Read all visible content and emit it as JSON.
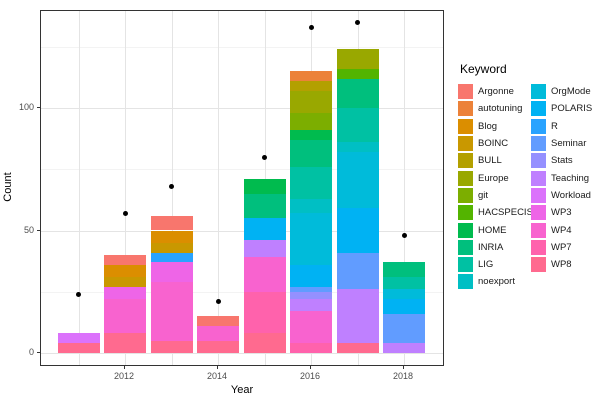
{
  "axes": {
    "x_label": "Year",
    "y_label": "Count",
    "y_ticks": [
      "0",
      "50",
      "100"
    ],
    "x_ticks": [
      "2012",
      "2014",
      "2016",
      "2018"
    ]
  },
  "legend": {
    "title": "Keyword",
    "column_split": 12
  },
  "chart_data": {
    "type": "bar",
    "stacked": true,
    "title": "",
    "xlabel": "Year",
    "ylabel": "Count",
    "ylim": [
      0,
      140
    ],
    "grid": "major 0/50/100, minor 25/75/125",
    "legend_position": "right",
    "legend_title": "Keyword",
    "categories": [
      2011,
      2012,
      2013,
      2014,
      2015,
      2016,
      2017,
      2018
    ],
    "series": [
      {
        "name": "Argonne",
        "color": "#F8766D",
        "values": [
          0,
          4,
          6,
          4,
          0,
          0,
          0,
          0
        ]
      },
      {
        "name": "autotuning",
        "color": "#EC8239",
        "values": [
          0,
          0,
          0,
          0,
          0,
          4,
          0,
          0
        ]
      },
      {
        "name": "Blog",
        "color": "#DB8E00",
        "values": [
          0,
          5,
          5,
          0,
          0,
          0,
          0,
          0
        ]
      },
      {
        "name": "BOINC",
        "color": "#C99800",
        "values": [
          0,
          4,
          4,
          0,
          0,
          0,
          0,
          0
        ]
      },
      {
        "name": "BULL",
        "color": "#B3A000",
        "values": [
          0,
          0,
          0,
          0,
          0,
          4,
          0,
          0
        ]
      },
      {
        "name": "Europe",
        "color": "#99A800",
        "values": [
          0,
          0,
          0,
          0,
          0,
          9,
          8,
          0
        ]
      },
      {
        "name": "git",
        "color": "#7CAE00",
        "values": [
          0,
          0,
          0,
          0,
          0,
          7,
          0,
          0
        ]
      },
      {
        "name": "HACSPECIS",
        "color": "#53B400",
        "values": [
          0,
          0,
          0,
          0,
          0,
          0,
          4,
          0
        ]
      },
      {
        "name": "HOME",
        "color": "#00BB4E",
        "values": [
          0,
          0,
          0,
          0,
          6,
          4,
          0,
          0
        ]
      },
      {
        "name": "INRIA",
        "color": "#00BF7D",
        "values": [
          0,
          0,
          0,
          0,
          10,
          11,
          12,
          6
        ]
      },
      {
        "name": "LIG",
        "color": "#00C1A3",
        "values": [
          0,
          0,
          0,
          0,
          0,
          13,
          14,
          5
        ]
      },
      {
        "name": "noexport",
        "color": "#00BFC4",
        "values": [
          0,
          0,
          0,
          0,
          0,
          6,
          4,
          0
        ]
      },
      {
        "name": "OrgMode",
        "color": "#00BBDA",
        "values": [
          0,
          0,
          0,
          0,
          0,
          21,
          23,
          4
        ]
      },
      {
        "name": "POLARIS",
        "color": "#00B2F3",
        "values": [
          0,
          0,
          0,
          0,
          9,
          9,
          18,
          6
        ]
      },
      {
        "name": "R",
        "color": "#29A3FF",
        "values": [
          0,
          0,
          4,
          0,
          0,
          0,
          0,
          0
        ]
      },
      {
        "name": "Seminar",
        "color": "#619CFF",
        "values": [
          0,
          0,
          0,
          0,
          0,
          2,
          15,
          12
        ]
      },
      {
        "name": "Stats",
        "color": "#9590FF",
        "values": [
          0,
          0,
          0,
          0,
          0,
          3,
          0,
          0
        ]
      },
      {
        "name": "Teaching",
        "color": "#BF80FF",
        "values": [
          0,
          0,
          0,
          0,
          7,
          5,
          22,
          4
        ]
      },
      {
        "name": "Workload",
        "color": "#DB72FB",
        "values": [
          4,
          0,
          0,
          0,
          0,
          0,
          0,
          0
        ]
      },
      {
        "name": "WP3",
        "color": "#EE65E7",
        "values": [
          0,
          5,
          8,
          0,
          0,
          0,
          0,
          0
        ]
      },
      {
        "name": "WP4",
        "color": "#F863CF",
        "values": [
          0,
          14,
          24,
          6,
          14,
          13,
          0,
          0
        ]
      },
      {
        "name": "WP7",
        "color": "#FF62AC",
        "values": [
          0,
          0,
          0,
          0,
          17,
          4,
          0,
          0
        ]
      },
      {
        "name": "WP8",
        "color": "#FF6A8F",
        "values": [
          4,
          8,
          5,
          5,
          8,
          0,
          4,
          0
        ]
      }
    ],
    "bar_totals": [
      8,
      40,
      56,
      15,
      71,
      115,
      124,
      37
    ],
    "points_series": {
      "name": "black-dots",
      "type": "scatter",
      "color": "#000000",
      "values": [
        24,
        57,
        68,
        21,
        80,
        133,
        135,
        48
      ]
    }
  }
}
